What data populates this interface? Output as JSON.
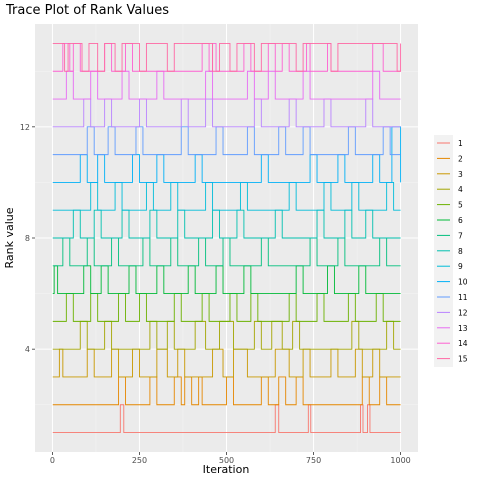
{
  "chart_data": {
    "type": "line",
    "title": "Trace Plot of Rank Values",
    "xlabel": "Iteration",
    "ylabel": "Rank value",
    "xlim": [
      -50,
      1050
    ],
    "ylim": [
      0.3,
      15.7
    ],
    "xticks": [
      0,
      250,
      500,
      750,
      1000
    ],
    "xtick_labels": [
      "0",
      "250",
      "500",
      "750",
      "1000"
    ],
    "yticks": [
      4,
      8,
      12
    ],
    "ytick_labels": [
      "4",
      "8",
      "12"
    ],
    "grid": true,
    "legend_position": "right",
    "series": [
      {
        "name": "1",
        "color": "#F8766D",
        "base": 1,
        "excursions": [
          [
            195,
            205,
            2
          ],
          [
            640,
            650,
            2
          ],
          [
            735,
            742,
            2
          ],
          [
            885,
            892,
            2
          ],
          [
            905,
            912,
            2
          ]
        ]
      },
      {
        "name": "2",
        "color": "#E58700",
        "base": 2,
        "excursions": [
          [
            190,
            210,
            3
          ],
          [
            280,
            300,
            3
          ],
          [
            350,
            370,
            3
          ],
          [
            380,
            400,
            3
          ],
          [
            420,
            430,
            3
          ],
          [
            500,
            520,
            3
          ],
          [
            600,
            620,
            3
          ],
          [
            650,
            670,
            3
          ],
          [
            700,
            720,
            3
          ],
          [
            890,
            910,
            3
          ],
          [
            940,
            960,
            3
          ]
        ]
      },
      {
        "name": "3",
        "color": "#C99800",
        "base": 3,
        "excursions": [
          [
            20,
            30,
            4
          ],
          [
            100,
            120,
            4
          ],
          [
            170,
            190,
            4
          ],
          [
            230,
            250,
            4
          ],
          [
            300,
            330,
            4
          ],
          [
            360,
            380,
            4
          ],
          [
            460,
            490,
            4
          ],
          [
            520,
            560,
            4
          ],
          [
            640,
            680,
            4
          ],
          [
            720,
            740,
            4
          ],
          [
            800,
            820,
            4
          ],
          [
            870,
            890,
            4
          ],
          [
            920,
            940,
            4
          ]
        ]
      },
      {
        "name": "4",
        "color": "#A3A500",
        "base": 4,
        "excursions": [
          [
            80,
            100,
            5
          ],
          [
            150,
            170,
            5
          ],
          [
            280,
            300,
            5
          ],
          [
            330,
            350,
            5
          ],
          [
            410,
            440,
            5
          ],
          [
            480,
            520,
            5
          ],
          [
            580,
            600,
            5
          ],
          [
            630,
            660,
            5
          ],
          [
            690,
            710,
            5
          ],
          [
            860,
            880,
            5
          ],
          [
            960,
            980,
            5
          ]
        ]
      },
      {
        "name": "5",
        "color": "#6BB100",
        "base": 5,
        "excursions": [
          [
            40,
            60,
            6
          ],
          [
            110,
            130,
            6
          ],
          [
            190,
            210,
            6
          ],
          [
            250,
            270,
            6
          ],
          [
            350,
            370,
            6
          ],
          [
            430,
            450,
            6
          ],
          [
            510,
            530,
            6
          ],
          [
            570,
            590,
            6
          ],
          [
            680,
            700,
            6
          ],
          [
            760,
            780,
            6
          ],
          [
            850,
            870,
            6
          ],
          [
            930,
            950,
            6
          ]
        ]
      },
      {
        "name": "6",
        "color": "#00BA38",
        "base": 6,
        "excursions": [
          [
            5,
            15,
            7
          ],
          [
            90,
            110,
            7
          ],
          [
            140,
            160,
            7
          ],
          [
            220,
            240,
            7
          ],
          [
            300,
            320,
            7
          ],
          [
            390,
            410,
            7
          ],
          [
            470,
            490,
            7
          ],
          [
            550,
            570,
            7
          ],
          [
            700,
            720,
            7
          ],
          [
            790,
            810,
            7
          ],
          [
            880,
            900,
            7
          ]
        ]
      },
      {
        "name": "7",
        "color": "#00BF7D",
        "base": 7,
        "excursions": [
          [
            30,
            50,
            8
          ],
          [
            100,
            120,
            8
          ],
          [
            170,
            190,
            8
          ],
          [
            260,
            280,
            8
          ],
          [
            340,
            360,
            8
          ],
          [
            420,
            440,
            8
          ],
          [
            490,
            510,
            8
          ],
          [
            600,
            620,
            8
          ],
          [
            740,
            760,
            8
          ],
          [
            820,
            840,
            8
          ],
          [
            940,
            960,
            8
          ]
        ]
      },
      {
        "name": "8",
        "color": "#00C0AF",
        "base": 8,
        "excursions": [
          [
            60,
            80,
            9
          ],
          [
            120,
            140,
            9
          ],
          [
            200,
            220,
            9
          ],
          [
            280,
            300,
            9
          ],
          [
            360,
            380,
            9
          ],
          [
            460,
            480,
            9
          ],
          [
            530,
            550,
            9
          ],
          [
            640,
            660,
            9
          ],
          [
            760,
            780,
            9
          ],
          [
            840,
            860,
            9
          ],
          [
            900,
            920,
            9
          ]
        ]
      },
      {
        "name": "9",
        "color": "#00BCD8",
        "base": 9,
        "excursions": [
          [
            110,
            130,
            10
          ],
          [
            180,
            200,
            10
          ],
          [
            270,
            290,
            10
          ],
          [
            340,
            360,
            10
          ],
          [
            440,
            460,
            10
          ],
          [
            540,
            560,
            10
          ],
          [
            680,
            700,
            10
          ],
          [
            780,
            800,
            10
          ],
          [
            860,
            880,
            10
          ],
          [
            960,
            980,
            10
          ]
        ]
      },
      {
        "name": "10",
        "color": "#00B0F6",
        "base": 10,
        "excursions": [
          [
            80,
            100,
            11
          ],
          [
            130,
            150,
            11
          ],
          [
            230,
            250,
            11
          ],
          [
            300,
            320,
            11
          ],
          [
            410,
            430,
            11
          ],
          [
            600,
            620,
            11
          ],
          [
            740,
            760,
            11
          ],
          [
            820,
            840,
            11
          ],
          [
            920,
            940,
            11
          ],
          [
            975,
            1000,
            12
          ]
        ]
      },
      {
        "name": "11",
        "color": "#619CFF",
        "base": 11,
        "excursions": [
          [
            100,
            120,
            12
          ],
          [
            160,
            180,
            12
          ],
          [
            240,
            260,
            12
          ],
          [
            370,
            390,
            12
          ],
          [
            470,
            490,
            12
          ],
          [
            560,
            580,
            12
          ],
          [
            650,
            670,
            12
          ],
          [
            720,
            740,
            12
          ],
          [
            850,
            870,
            12
          ],
          [
            950,
            970,
            12
          ]
        ]
      },
      {
        "name": "12",
        "color": "#B983FF",
        "base": 12,
        "excursions": [
          [
            90,
            110,
            13
          ],
          [
            150,
            170,
            13
          ],
          [
            250,
            270,
            13
          ],
          [
            370,
            390,
            13
          ],
          [
            440,
            460,
            13
          ],
          [
            580,
            600,
            13
          ],
          [
            680,
            700,
            13
          ],
          [
            780,
            800,
            13
          ],
          [
            900,
            920,
            13
          ]
        ]
      },
      {
        "name": "13",
        "color": "#E76BF3",
        "base": 13,
        "excursions": [
          [
            40,
            60,
            14
          ],
          [
            110,
            130,
            14
          ],
          [
            200,
            220,
            14
          ],
          [
            300,
            320,
            14
          ],
          [
            440,
            460,
            14
          ],
          [
            560,
            580,
            14
          ],
          [
            620,
            640,
            14
          ],
          [
            720,
            740,
            14
          ],
          [
            920,
            940,
            14
          ]
        ]
      },
      {
        "name": "14",
        "color": "#FD61D1",
        "base": 14,
        "excursions": [
          [
            30,
            50,
            15
          ],
          [
            60,
            80,
            15
          ],
          [
            150,
            170,
            15
          ],
          [
            210,
            230,
            15
          ],
          [
            430,
            450,
            15
          ],
          [
            460,
            470,
            15
          ],
          [
            550,
            570,
            15
          ],
          [
            620,
            640,
            15
          ],
          [
            660,
            680,
            15
          ],
          [
            730,
            740,
            15
          ],
          [
            790,
            800,
            15
          ],
          [
            920,
            950,
            15
          ]
        ]
      },
      {
        "name": "15",
        "color": "#FF67A4",
        "base": 15,
        "excursions": [
          [
            35,
            45,
            14
          ],
          [
            85,
            105,
            14
          ],
          [
            130,
            150,
            14
          ],
          [
            180,
            200,
            14
          ],
          [
            250,
            270,
            14
          ],
          [
            330,
            350,
            14
          ],
          [
            460,
            480,
            14
          ],
          [
            510,
            530,
            14
          ],
          [
            580,
            600,
            14
          ],
          [
            700,
            720,
            14
          ],
          [
            800,
            820,
            14
          ],
          [
            990,
            1000,
            14
          ]
        ]
      }
    ]
  }
}
